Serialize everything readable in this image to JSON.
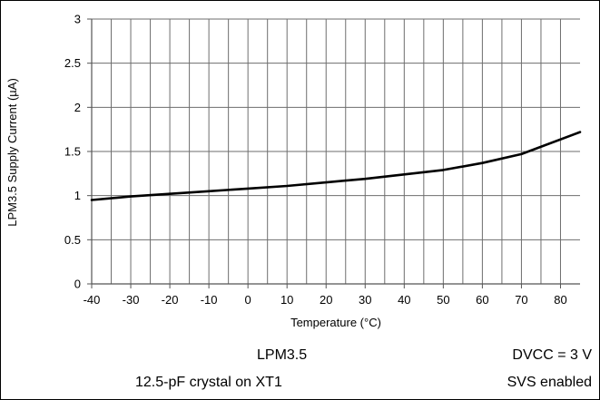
{
  "chart_data": {
    "type": "line",
    "title": "",
    "xlabel": "Temperature (°C)",
    "ylabel": "LPM3.5 Supply Current (µA)",
    "xlim": [
      -40,
      85
    ],
    "ylim": [
      0,
      3
    ],
    "x_ticks": [
      "-40",
      "-30",
      "-20",
      "-10",
      "0",
      "10",
      "20",
      "30",
      "40",
      "50",
      "60",
      "70",
      "80"
    ],
    "y_ticks": [
      "0",
      "0.5",
      "1",
      "1.5",
      "2",
      "2.5",
      "3"
    ],
    "grid": "vertical every 5 °C, horizontal every 0.5 µA",
    "legend": "none",
    "series": [
      {
        "color": "#000000",
        "x": [
          -40,
          -30,
          -20,
          -10,
          0,
          10,
          20,
          25,
          30,
          40,
          50,
          60,
          70,
          85
        ],
        "y": [
          0.95,
          0.99,
          1.02,
          1.05,
          1.08,
          1.11,
          1.15,
          1.17,
          1.19,
          1.24,
          1.29,
          1.37,
          1.47,
          1.72
        ]
      }
    ],
    "conditions": {
      "left_line1": "LPM3.5",
      "left_line2": "12.5-pF crystal on XT1",
      "right_line1": "DVCC = 3 V",
      "right_line2": "SVS enabled"
    }
  }
}
